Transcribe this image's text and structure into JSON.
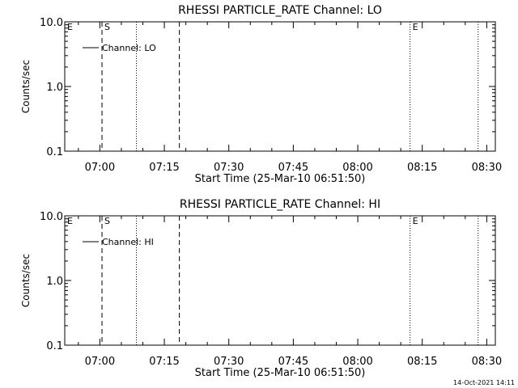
{
  "footer": {
    "timestamp": "14-Oct-2021 14:11"
  },
  "chart_data": [
    {
      "type": "line",
      "title": "RHESSI PARTICLE_RATE Channel: LO",
      "xlabel": "Start Time (25-Mar-10 06:51:50)",
      "ylabel": "Counts/sec",
      "yscale": "log",
      "ylim": [
        0.1,
        10.0
      ],
      "y_ticks": [
        {
          "value": 0.1,
          "label": "0.1"
        },
        {
          "value": 1.0,
          "label": "1.0"
        },
        {
          "value": 10.0,
          "label": "10.0"
        }
      ],
      "xlim": [
        "06:51:50",
        "08:32:00"
      ],
      "x_ticks": [
        "07:00",
        "07:15",
        "07:30",
        "07:45",
        "08:00",
        "08:15",
        "08:30"
      ],
      "legend": {
        "entries": [
          "Channel: LO"
        ],
        "placement": "upper-left"
      },
      "series": [
        {
          "name": "Channel: LO",
          "x": [],
          "y": []
        }
      ],
      "markers": [
        {
          "time": "06:51:50",
          "style": "none",
          "label": "E"
        },
        {
          "time": "07:00:30",
          "style": "dashed",
          "label": "S"
        },
        {
          "time": "07:08:30",
          "style": "dotted",
          "label": ""
        },
        {
          "time": "07:18:30",
          "style": "dashed",
          "label": ""
        },
        {
          "time": "08:12:10",
          "style": "dotted",
          "label": "E"
        },
        {
          "time": "08:28:00",
          "style": "dotted",
          "label": ""
        }
      ]
    },
    {
      "type": "line",
      "title": "RHESSI PARTICLE_RATE Channel: HI",
      "xlabel": "Start Time (25-Mar-10 06:51:50)",
      "ylabel": "Counts/sec",
      "yscale": "log",
      "ylim": [
        0.1,
        10.0
      ],
      "y_ticks": [
        {
          "value": 0.1,
          "label": "0.1"
        },
        {
          "value": 1.0,
          "label": "1.0"
        },
        {
          "value": 10.0,
          "label": "10.0"
        }
      ],
      "xlim": [
        "06:51:50",
        "08:32:00"
      ],
      "x_ticks": [
        "07:00",
        "07:15",
        "07:30",
        "07:45",
        "08:00",
        "08:15",
        "08:30"
      ],
      "legend": {
        "entries": [
          "Channel: HI"
        ],
        "placement": "upper-left"
      },
      "series": [
        {
          "name": "Channel: HI",
          "x": [],
          "y": []
        }
      ],
      "markers": [
        {
          "time": "06:51:50",
          "style": "none",
          "label": "E"
        },
        {
          "time": "07:00:30",
          "style": "dashed",
          "label": "S"
        },
        {
          "time": "07:08:30",
          "style": "dotted",
          "label": ""
        },
        {
          "time": "07:18:30",
          "style": "dashed",
          "label": ""
        },
        {
          "time": "08:12:10",
          "style": "dotted",
          "label": "E"
        },
        {
          "time": "08:28:00",
          "style": "dotted",
          "label": ""
        }
      ]
    }
  ]
}
